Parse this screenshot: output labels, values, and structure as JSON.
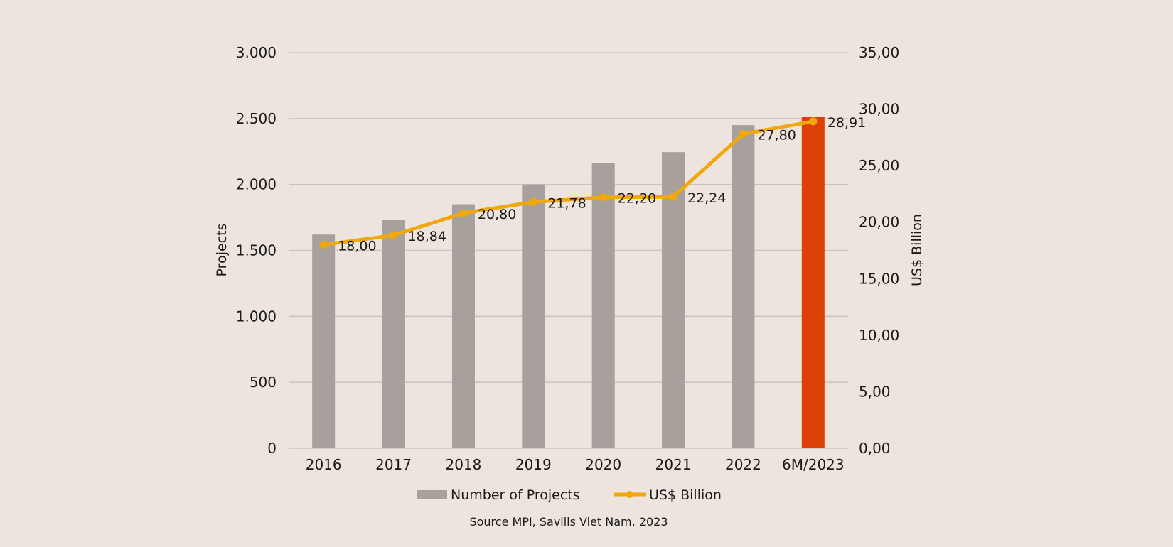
{
  "chart_data": {
    "type": "bar",
    "categories": [
      "2016",
      "2017",
      "2018",
      "2019",
      "2020",
      "2021",
      "2022",
      "6M/2023"
    ],
    "series": [
      {
        "name": "Number of Projects",
        "type": "bar",
        "axis": "left",
        "values": [
          1620,
          1730,
          1850,
          2000,
          2160,
          2245,
          2450,
          2510
        ],
        "color": "#a8a09c",
        "highlight_color": "#dd4005",
        "highlight_index": 7
      },
      {
        "name": "US$ Billion",
        "type": "line",
        "axis": "right",
        "values": [
          18.0,
          18.84,
          20.8,
          21.78,
          22.2,
          22.24,
          27.8,
          28.91
        ],
        "labels": [
          "18,00",
          "18,84",
          "20,80",
          "21,78",
          "22,20",
          "22,24",
          "27,80",
          "28,91"
        ],
        "color": "#f1a80d"
      }
    ],
    "left_axis": {
      "title": "Projects",
      "range": [
        0,
        3000
      ],
      "ticks": [
        0,
        500,
        1000,
        1500,
        2000,
        2500,
        3000
      ],
      "tick_labels": [
        "0",
        "500",
        "1.000",
        "1.500",
        "2.000",
        "2.500",
        "3.000"
      ]
    },
    "right_axis": {
      "title": "US$ Billion",
      "range": [
        0,
        35
      ],
      "ticks": [
        0,
        5,
        10,
        15,
        20,
        25,
        30,
        35
      ],
      "tick_labels": [
        "0,00",
        "5,00",
        "10,00",
        "15,00",
        "20,00",
        "25,00",
        "30,00",
        "35,00"
      ]
    },
    "grid": true,
    "legend_position": "bottom",
    "source": "Source MPI, Savills Viet Nam, 2023",
    "background": "#ede4de",
    "grid_color": "#cbc2bd",
    "text_color": "#1a1a1a"
  }
}
